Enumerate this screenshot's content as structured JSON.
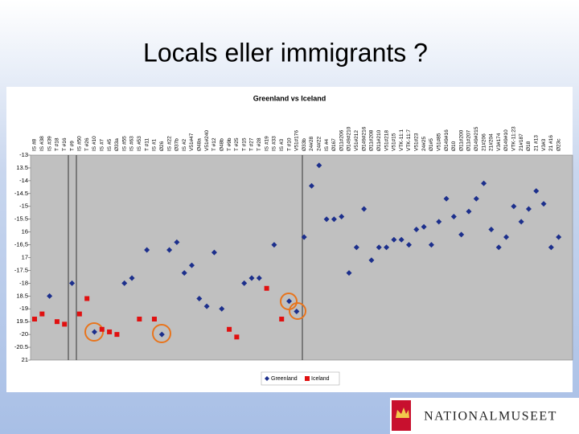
{
  "slide_title": "Locals eller immigrants ?",
  "logo": "NATIONALMUSEET",
  "chart_data": {
    "type": "scatter",
    "title": "Greenland vs Iceland",
    "categories": [
      "IS #8",
      "IS #38",
      "IS #39",
      "T #18",
      "T #16",
      "T #9",
      "IS #50",
      "T #26",
      "IS #10",
      "IS #7",
      "IS #5",
      "Ø33a",
      "IS #55",
      "IS #63",
      "IS #53",
      "T #11",
      "IS #1",
      "Ø26",
      "IS #22",
      "Ø37b",
      "IS #2",
      "V51#47",
      "Ø48a",
      "V51#240",
      "T #12",
      "Ø48b",
      "T #9b",
      "T #25",
      "T #15",
      "T #27",
      "T #28",
      "IS #19",
      "IS #33",
      "IS #3",
      "T #10",
      "V51#176",
      "Ø33b",
      "24#28",
      "24#22",
      "IS #4",
      "Ø167",
      "Ø11#206",
      "Ø149#210",
      "V51#212",
      "Ø149#216",
      "Ø11#208",
      "Ø11#210",
      "V51#218",
      "V51#15",
      "VTK-11:1",
      "VTK-11:7",
      "V51#23",
      "24#25",
      "Ø1#5",
      "V51#85",
      "Ø149#16",
      "Ø10",
      "Ø11#200",
      "Ø11#207",
      "Ø149#215",
      "21#206",
      "21#204",
      "V3#174",
      "Ø149#10",
      "VTK-11:23",
      "21#187",
      "Ø18",
      "21 #13",
      "V3#3",
      "21 #16",
      "Ø23c"
    ],
    "series": [
      {
        "name": "Greenland",
        "color": "#1c2f8c",
        "marker": "diamond",
        "values": [
          null,
          null,
          -18.5,
          null,
          null,
          -18.0,
          null,
          null,
          -19.9,
          null,
          null,
          null,
          -18.0,
          -17.8,
          null,
          -16.7,
          null,
          -20.0,
          -16.7,
          -16.4,
          -17.6,
          -17.3,
          -18.6,
          -18.9,
          -16.8,
          -19.0,
          null,
          null,
          -18.0,
          -17.8,
          -17.8,
          null,
          -16.5,
          null,
          -18.7,
          -19.1,
          -16.2,
          -14.2,
          -13.4,
          -15.5,
          -15.5,
          -15.4,
          -17.6,
          -16.6,
          -15.1,
          -17.1,
          -16.6,
          -16.6,
          -16.3,
          -16.3,
          -16.5,
          -15.9,
          -15.8,
          -16.5,
          -15.6,
          -14.7,
          -15.4,
          -16.1,
          -15.2,
          -14.7,
          -14.1,
          -15.9,
          -16.6,
          -16.2,
          -15.0,
          -15.6,
          -15.1,
          -14.4,
          -14.9,
          -16.6,
          -16.2
        ]
      },
      {
        "name": "Iceland",
        "color": "#e01010",
        "marker": "square",
        "values": [
          -19.4,
          -19.2,
          null,
          -19.5,
          -19.6,
          null,
          -19.2,
          -18.6,
          null,
          -19.8,
          -19.9,
          -20.0,
          null,
          null,
          -19.4,
          null,
          -19.4,
          null,
          null,
          null,
          null,
          null,
          null,
          null,
          null,
          null,
          -19.8,
          -20.1,
          null,
          null,
          null,
          -18.2,
          null,
          -19.4,
          null,
          null,
          null,
          null,
          null,
          null,
          null,
          null,
          null,
          null,
          null,
          null,
          null,
          null,
          null,
          null,
          null,
          null,
          null,
          null,
          null,
          null,
          null,
          null,
          null,
          null,
          null,
          null,
          null,
          null,
          null,
          null,
          null,
          null,
          null,
          null,
          null
        ]
      }
    ],
    "ylim": [
      -21,
      -13
    ],
    "yticks": [
      -13,
      {
        "value": -13.5,
        "label": "13.5"
      },
      -14,
      -14.5,
      -15,
      -15.5,
      {
        "value": -16,
        "label": "16"
      },
      {
        "value": -16.5,
        "label": "-16,5"
      },
      {
        "value": -17,
        "label": "17"
      },
      -17.5,
      -18,
      {
        "value": -18.5,
        "label": "18.5"
      },
      -19,
      {
        "value": -19.5,
        "label": "19.5"
      },
      -20,
      -20.5,
      {
        "value": -21,
        "label": "21"
      }
    ],
    "grid": false,
    "legend": "bottom"
  }
}
